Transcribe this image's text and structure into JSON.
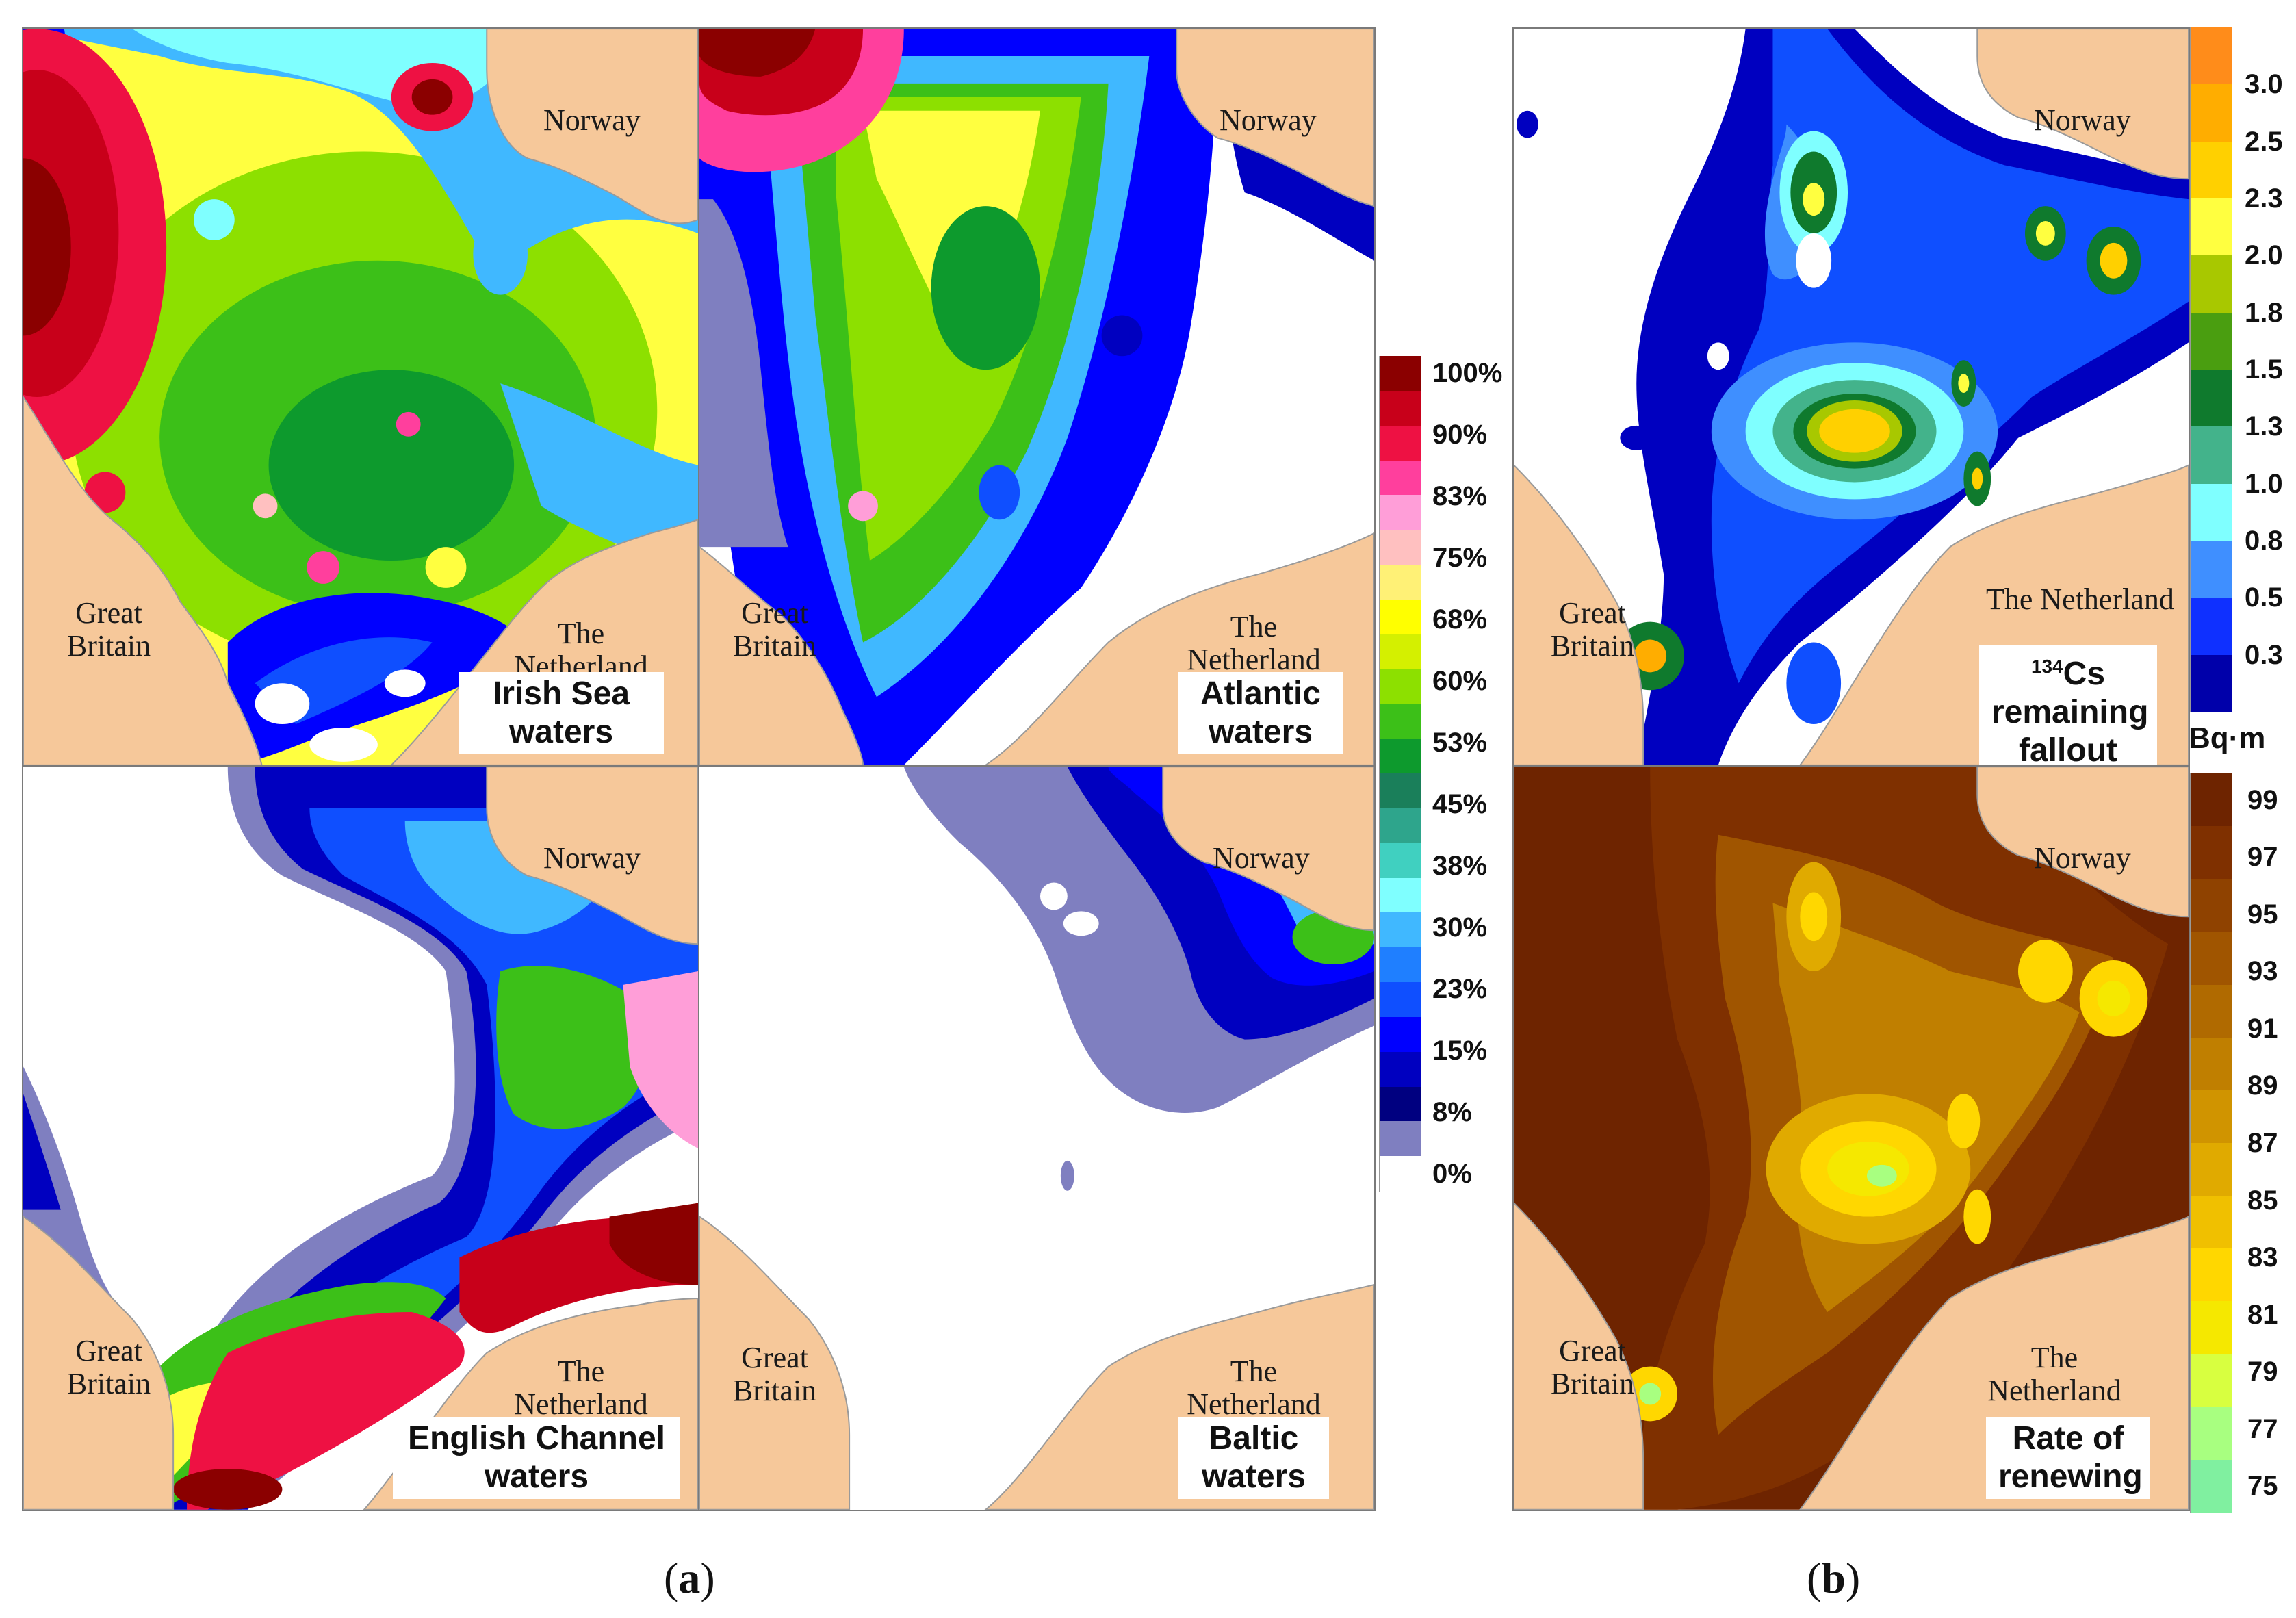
{
  "panels": {
    "irish_sea": {
      "label": "Irish Sea waters",
      "country_norway": "Norway",
      "country_gb": "Great Britain",
      "country_nl": "The Netherland"
    },
    "atlantic": {
      "label": "Atlantic waters",
      "country_norway": "Norway",
      "country_gb": "Great Britain",
      "country_nl": "The Netherland"
    },
    "english_channel": {
      "label": "English Channel waters",
      "country_norway": "Norway",
      "country_gb": "Great Britain",
      "country_nl": "The Netherland"
    },
    "baltic": {
      "label": "Baltic waters",
      "country_norway": "Norway",
      "country_gb": "Great Britain",
      "country_nl": "The Netherland"
    },
    "cs134": {
      "label_isotope": "134",
      "label_rest": "Cs remaining fallout",
      "country_norway": "Norway",
      "country_gb": "Great Britain",
      "country_nl": "The Netherland"
    },
    "renewing": {
      "label": "Rate of renewing",
      "country_norway": "Norway",
      "country_gb": "Great Britain",
      "country_nl": "The Netherland"
    }
  },
  "legends": {
    "fraction": {
      "ticks": [
        "100%",
        "90%",
        "83%",
        "75%",
        "68%",
        "60%",
        "53%",
        "45%",
        "38%",
        "30%",
        "23%",
        "15%",
        "8%",
        "0%"
      ],
      "colors": [
        "#8b0000",
        "#c8001a",
        "#ee1143",
        "#ff3f9d",
        "#ff9ed8",
        "#ffc0c0",
        "#fff176",
        "#ffff00",
        "#d4f000",
        "#8de000",
        "#3cc018",
        "#0d9a2d",
        "#1a7f5a",
        "#2ea58c",
        "#40d0c0",
        "#7fffff",
        "#40b8ff",
        "#1f7fff",
        "#0f4fff",
        "#0000ff",
        "#0000c0",
        "#000080",
        "#7f7fc0",
        "#ffffff"
      ]
    },
    "cs134": {
      "ticks": [
        "3.0",
        "2.5",
        "2.3",
        "2.0",
        "1.8",
        "1.5",
        "1.3",
        "1.0",
        "0.8",
        "0.5",
        "0.3"
      ],
      "colors": [
        "#ff8c1a",
        "#ffad00",
        "#ffd000",
        "#ffff40",
        "#a8c800",
        "#4a9e10",
        "#0f7a2d",
        "#43b38b",
        "#7fffff",
        "#3f8fff",
        "#0f30ff",
        "#0000aa"
      ],
      "unit": "Bq·m"
    },
    "renewing": {
      "ticks": [
        "99",
        "97",
        "95",
        "93",
        "91",
        "89",
        "87",
        "85",
        "83",
        "81",
        "79",
        "77",
        "75"
      ],
      "colors": [
        "#6e2400",
        "#7f3000",
        "#8f4200",
        "#a05500",
        "#b06a00",
        "#c07f00",
        "#d09400",
        "#e0aa00",
        "#f0c000",
        "#ffd700",
        "#f5e800",
        "#d8ff40",
        "#a8ff80",
        "#80f0a0"
      ]
    }
  },
  "captions": {
    "a": "a",
    "b": "b"
  },
  "colors": {
    "land": "#f6c89a",
    "coast": "#9a9a9a"
  }
}
